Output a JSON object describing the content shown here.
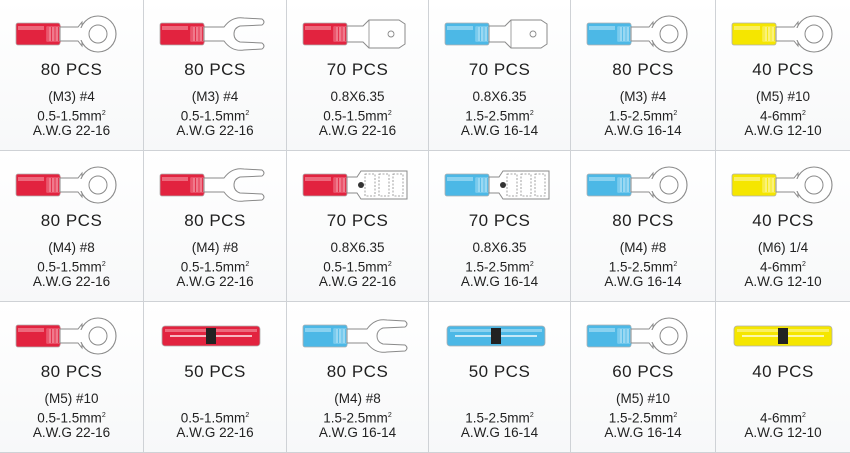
{
  "palette": {
    "red": "#e2233f",
    "red_light": "#f07a8c",
    "blue": "#4cb8e6",
    "blue_light": "#9ad8f2",
    "yellow": "#f5e600",
    "yellow_light": "#fbf27a",
    "metal": "#ffffff",
    "line": "#8a8a8a"
  },
  "items": [
    {
      "type": "ring",
      "color": "red",
      "qty": "80 PCS",
      "size": "(M3) #4",
      "range": "0.5-1.5mm",
      "awg": "A.W.G 22-16"
    },
    {
      "type": "fork",
      "color": "red",
      "qty": "80 PCS",
      "size": "(M3) #4",
      "range": "0.5-1.5mm",
      "awg": "A.W.G 22-16"
    },
    {
      "type": "male",
      "color": "red",
      "qty": "70 PCS",
      "size": "0.8X6.35",
      "range": "0.5-1.5mm",
      "awg": "A.W.G 22-16"
    },
    {
      "type": "male",
      "color": "blue",
      "qty": "70 PCS",
      "size": "0.8X6.35",
      "range": "1.5-2.5mm",
      "awg": "A.W.G 16-14"
    },
    {
      "type": "ring",
      "color": "blue",
      "qty": "80 PCS",
      "size": "(M3) #4",
      "range": "1.5-2.5mm",
      "awg": "A.W.G 16-14"
    },
    {
      "type": "ring",
      "color": "yellow",
      "qty": "40 PCS",
      "size": "(M5) #10",
      "range": "4-6mm",
      "awg": "A.W.G 12-10"
    },
    {
      "type": "ring",
      "color": "red",
      "qty": "80 PCS",
      "size": "(M4) #8",
      "range": "0.5-1.5mm",
      "awg": "A.W.G 22-16"
    },
    {
      "type": "fork",
      "color": "red",
      "qty": "80 PCS",
      "size": "(M4) #8",
      "range": "0.5-1.5mm",
      "awg": "A.W.G 22-16"
    },
    {
      "type": "female",
      "color": "red",
      "qty": "70 PCS",
      "size": "0.8X6.35",
      "range": "0.5-1.5mm",
      "awg": "A.W.G 22-16"
    },
    {
      "type": "female",
      "color": "blue",
      "qty": "70 PCS",
      "size": "0.8X6.35",
      "range": "1.5-2.5mm",
      "awg": "A.W.G 16-14"
    },
    {
      "type": "ring",
      "color": "blue",
      "qty": "80 PCS",
      "size": "(M4) #8",
      "range": "1.5-2.5mm",
      "awg": "A.W.G 16-14"
    },
    {
      "type": "ring",
      "color": "yellow",
      "qty": "40 PCS",
      "size": "(M6) 1/4",
      "range": "4-6mm",
      "awg": "A.W.G 12-10"
    },
    {
      "type": "ring",
      "color": "red",
      "qty": "80 PCS",
      "size": "(M5) #10",
      "range": "0.5-1.5mm",
      "awg": "A.W.G 22-16"
    },
    {
      "type": "butt",
      "color": "red",
      "qty": "50 PCS",
      "size": "",
      "range": "0.5-1.5mm",
      "awg": "A.W.G 22-16"
    },
    {
      "type": "fork",
      "color": "blue",
      "qty": "80 PCS",
      "size": "(M4) #8",
      "range": "1.5-2.5mm",
      "awg": "A.W.G 16-14"
    },
    {
      "type": "butt",
      "color": "blue",
      "qty": "50 PCS",
      "size": "",
      "range": "1.5-2.5mm",
      "awg": "A.W.G 16-14"
    },
    {
      "type": "ring",
      "color": "blue",
      "qty": "60 PCS",
      "size": "(M5) #10",
      "range": "1.5-2.5mm",
      "awg": "A.W.G 16-14"
    },
    {
      "type": "butt",
      "color": "yellow",
      "qty": "40 PCS",
      "size": "",
      "range": "4-6mm",
      "awg": "A.W.G 12-10"
    }
  ]
}
